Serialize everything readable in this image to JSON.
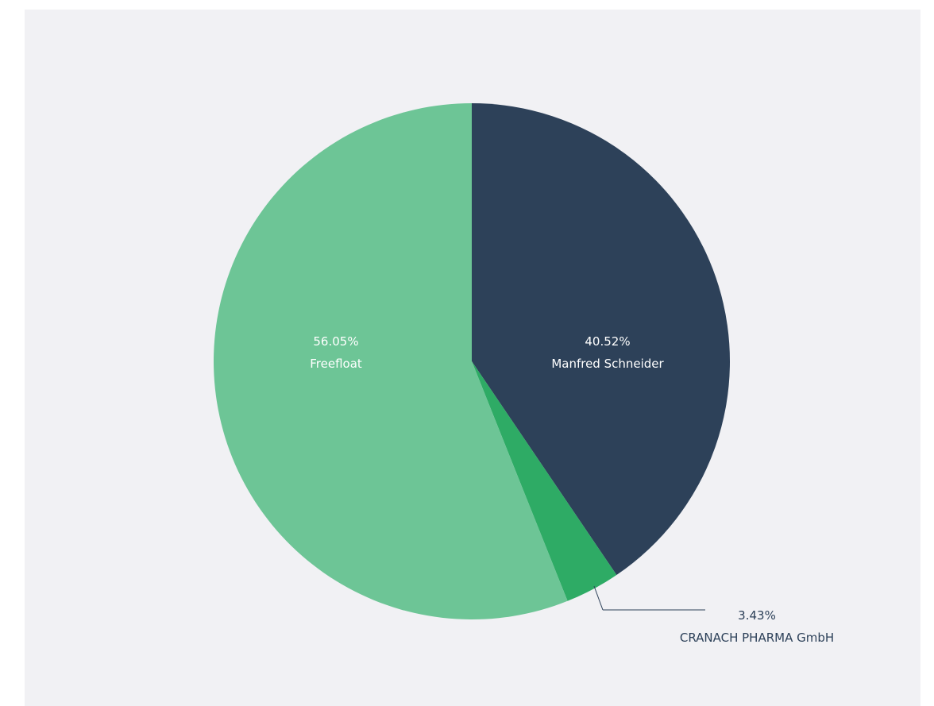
{
  "chart_data": {
    "type": "pie",
    "slices": [
      {
        "name": "Manfred Schneider",
        "value": 40.52,
        "label_value": "40.52%",
        "color": "#2d4159"
      },
      {
        "name": "CRANACH PHARMA GmbH",
        "value": 3.43,
        "label_value": "3.43%",
        "color": "#2eab65"
      },
      {
        "name": "Freefloat",
        "value": 56.05,
        "label_value": "56.05%",
        "color": "#6dc596"
      }
    ],
    "start_angle_deg": 0,
    "direction": "clockwise"
  }
}
